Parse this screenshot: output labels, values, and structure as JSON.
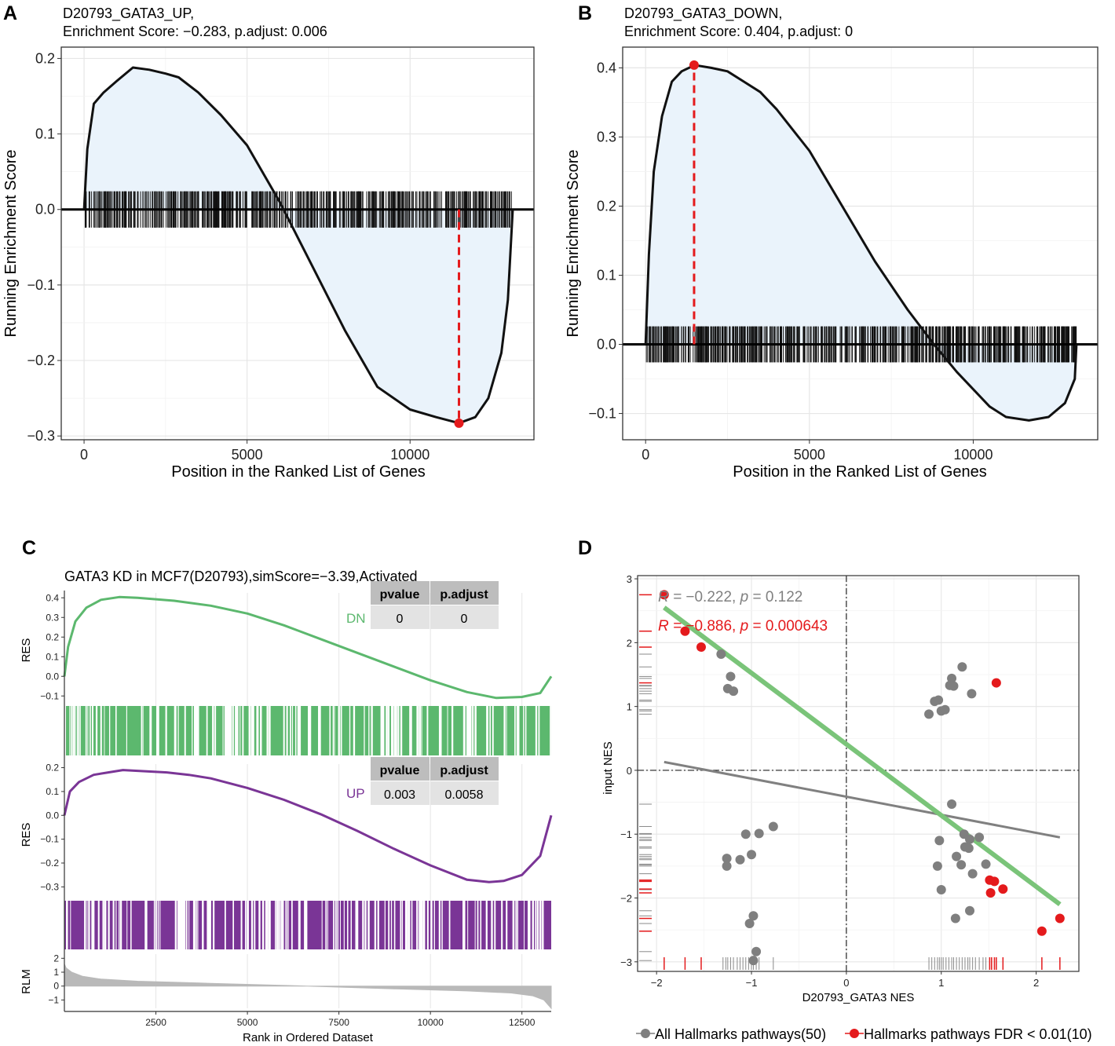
{
  "figure": {
    "panel_letters": [
      "A",
      "B",
      "C",
      "D"
    ]
  },
  "colors": {
    "fill": "#eaf3fb",
    "curve": "#111111",
    "peak": "#e41a1c",
    "dn_green": "#5cb86e",
    "up_purple": "#7a3596",
    "rlm_gray": "#b9b9b9",
    "fit_green": "#7ac479",
    "fit_gray": "#808080",
    "dot_gray": "#7f7f7f",
    "dot_red": "#e41a1c",
    "table_header": "#bdbdbd",
    "table_cell": "#e3e3e3"
  },
  "chart_data": [
    {
      "panel": "A",
      "type": "line",
      "title_line1": "D20793_GATA3_UP,",
      "title_line2": "Enrichment Score: −0.283, p.adjust: 0.006",
      "xlabel": "Position in the Ranked List of Genes",
      "ylabel": "Running Enrichment Score",
      "xlim": [
        -700,
        13800
      ],
      "ylim": [
        -0.305,
        0.215
      ],
      "xticks": [
        0,
        5000,
        10000
      ],
      "xtick_labels": [
        "0",
        "5000",
        "10000"
      ],
      "yticks": [
        -0.3,
        -0.2,
        -0.1,
        0.0,
        0.1,
        0.2
      ],
      "ytick_labels": [
        "−0.3",
        "−0.2",
        "−0.1",
        "0.0",
        "0.1",
        "0.2"
      ],
      "curve_x": [
        0,
        100,
        300,
        600,
        1000,
        1500,
        2000,
        2500,
        2900,
        3500,
        4200,
        5000,
        6000,
        7000,
        8000,
        9000,
        10000,
        10800,
        11500,
        12000,
        12400,
        12800,
        13000,
        13150
      ],
      "curve_y": [
        0.0,
        0.08,
        0.14,
        0.155,
        0.17,
        0.188,
        0.185,
        0.18,
        0.175,
        0.155,
        0.125,
        0.085,
        0.01,
        -0.075,
        -0.16,
        -0.235,
        -0.265,
        -0.275,
        -0.283,
        -0.275,
        -0.25,
        -0.19,
        -0.12,
        0.0
      ],
      "peak_x": 11500,
      "peak_y": -0.283,
      "hit_band": [
        -0.024,
        0.024
      ],
      "hit_range": [
        0,
        13150
      ],
      "hit_count": 560,
      "gap_ranges": [],
      "zero_line": true
    },
    {
      "panel": "B",
      "type": "line",
      "title_line1": "D20793_GATA3_DOWN,",
      "title_line2": "Enrichment Score: 0.404, p.adjust: 0",
      "xlabel": "Position in the Ranked List of Genes",
      "ylabel": "Running Enrichment Score",
      "xlim": [
        -700,
        13800
      ],
      "ylim": [
        -0.138,
        0.43
      ],
      "xticks": [
        0,
        5000,
        10000
      ],
      "xtick_labels": [
        "0",
        "5000",
        "10000"
      ],
      "yticks": [
        -0.1,
        0.0,
        0.1,
        0.2,
        0.3,
        0.4
      ],
      "ytick_labels": [
        "−0.1",
        "0.0",
        "0.1",
        "0.2",
        "0.3",
        "0.4"
      ],
      "curve_x": [
        0,
        100,
        250,
        500,
        800,
        1100,
        1500,
        2000,
        2500,
        3000,
        3500,
        4000,
        5000,
        6000,
        7000,
        8000,
        8800,
        9500,
        10500,
        11000,
        11700,
        12300,
        12800,
        13100,
        13150
      ],
      "curve_y": [
        0.0,
        0.13,
        0.25,
        0.33,
        0.38,
        0.395,
        0.404,
        0.4,
        0.395,
        0.38,
        0.365,
        0.34,
        0.28,
        0.2,
        0.12,
        0.05,
        0.0,
        -0.04,
        -0.09,
        -0.105,
        -0.11,
        -0.105,
        -0.085,
        -0.05,
        0.0
      ],
      "peak_x": 1480,
      "peak_y": 0.404,
      "hit_band": [
        -0.026,
        0.026
      ],
      "hit_range": [
        0,
        13150
      ],
      "hit_count": 600,
      "gap_ranges": [],
      "zero_line": true
    },
    {
      "panel": "C",
      "type": "line",
      "title": "GATA3 KD in MCF7(D20793),simScore=−3.39,Activated",
      "xlabel": "Rank in Ordered Dataset",
      "xlim": [
        0,
        13300
      ],
      "xticks": [
        2500,
        5000,
        7500,
        10000,
        12500
      ],
      "xtick_labels": [
        "2500",
        "5000",
        "7500",
        "10000",
        "12500"
      ],
      "res_label": "RES",
      "rlm_label": "RLM",
      "dn": {
        "name": "DN",
        "ylim": [
          -0.135,
          0.425
        ],
        "yticks": [
          -0.1,
          0.0,
          0.1,
          0.2,
          0.3,
          0.4
        ],
        "ytick_labels": [
          "−0.1",
          "0.0",
          "0.1",
          "0.2",
          "0.3",
          "0.4"
        ],
        "curve_x": [
          0,
          100,
          300,
          600,
          1000,
          1500,
          2000,
          3000,
          4000,
          5000,
          6000,
          7000,
          8000,
          9000,
          10000,
          11000,
          11800,
          12500,
          13000,
          13300
        ],
        "curve_y": [
          0.0,
          0.15,
          0.28,
          0.35,
          0.39,
          0.404,
          0.4,
          0.385,
          0.36,
          0.32,
          0.26,
          0.19,
          0.12,
          0.05,
          -0.02,
          -0.08,
          -0.11,
          -0.105,
          -0.085,
          0.0
        ],
        "table": {
          "headers": [
            "pvalue",
            "p.adjust"
          ],
          "values": [
            "0",
            "0"
          ]
        },
        "hit_count": 520,
        "gap_ranges": [
          [
            4400,
            4550
          ],
          [
            8650,
            8740
          ],
          [
            9000,
            9080
          ]
        ]
      },
      "up": {
        "name": "UP",
        "ylim": [
          -0.335,
          0.215
        ],
        "yticks": [
          -0.3,
          -0.2,
          -0.1,
          0.0,
          0.1,
          0.2
        ],
        "ytick_labels": [
          "−0.3",
          "−0.2",
          "−0.1",
          "0.0",
          "0.1",
          "0.2"
        ],
        "curve_x": [
          0,
          150,
          400,
          800,
          1200,
          1600,
          2200,
          2800,
          3400,
          4000,
          5000,
          6000,
          7000,
          8000,
          9000,
          10000,
          11000,
          11600,
          12000,
          12500,
          13000,
          13300
        ],
        "curve_y": [
          0.0,
          0.1,
          0.14,
          0.17,
          0.18,
          0.19,
          0.185,
          0.18,
          0.17,
          0.155,
          0.115,
          0.065,
          0.005,
          -0.065,
          -0.14,
          -0.21,
          -0.27,
          -0.28,
          -0.275,
          -0.25,
          -0.17,
          0.0
        ],
        "table": {
          "headers": [
            "pvalue",
            "p.adjust"
          ],
          "values": [
            "0.003",
            "0.0058"
          ]
        },
        "hit_count": 480,
        "gap_ranges": [
          [
            3150,
            3300
          ],
          [
            9700,
            9800
          ]
        ]
      },
      "rlm": {
        "ylim": [
          -1.6,
          2.3
        ],
        "yticks": [
          -1,
          0,
          1,
          2
        ],
        "ytick_labels": [
          "−1",
          "0",
          "1",
          "2"
        ],
        "curve_x": [
          0,
          50,
          200,
          500,
          1000,
          2000,
          4000,
          6650,
          9000,
          11000,
          12200,
          12800,
          13100,
          13300
        ],
        "curve_y": [
          1.6,
          1.3,
          1.0,
          0.7,
          0.5,
          0.35,
          0.2,
          0.0,
          -0.2,
          -0.35,
          -0.5,
          -0.7,
          -1.0,
          -1.6
        ]
      }
    },
    {
      "panel": "D",
      "type": "scatter",
      "xlabel": "D20793_GATA3 NES",
      "ylabel": "input NES",
      "xlim": [
        -2.2,
        2.45
      ],
      "ylim": [
        -3.15,
        3.05
      ],
      "xticks": [
        -2,
        -1,
        0,
        1,
        2
      ],
      "xtick_labels": [
        "−2",
        "−1",
        "0",
        "1",
        "2"
      ],
      "yticks": [
        -3,
        -2,
        -1,
        0,
        1,
        2,
        3
      ],
      "ytick_labels": [
        "−3",
        "−2",
        "−1",
        "0",
        "1",
        "2",
        "3"
      ],
      "gray_points": [
        [
          -1.32,
          1.82
        ],
        [
          -1.22,
          1.47
        ],
        [
          -1.25,
          1.28
        ],
        [
          -1.19,
          1.24
        ],
        [
          -1.06,
          -1.0
        ],
        [
          -0.92,
          -0.99
        ],
        [
          -0.77,
          -0.88
        ],
        [
          -1.26,
          -1.38
        ],
        [
          -1.26,
          -1.5
        ],
        [
          -1.12,
          -1.4
        ],
        [
          -1.0,
          -1.32
        ],
        [
          -0.98,
          -2.28
        ],
        [
          -1.02,
          -2.4
        ],
        [
          -0.95,
          -2.84
        ],
        [
          -0.98,
          -2.98
        ],
        [
          1.22,
          1.62
        ],
        [
          1.11,
          1.44
        ],
        [
          1.13,
          1.32
        ],
        [
          1.09,
          1.33
        ],
        [
          0.93,
          1.08
        ],
        [
          0.97,
          1.1
        ],
        [
          1.0,
          0.93
        ],
        [
          1.04,
          0.95
        ],
        [
          0.87,
          0.88
        ],
        [
          1.32,
          1.2
        ],
        [
          1.11,
          -0.53
        ],
        [
          0.98,
          -1.1
        ],
        [
          1.24,
          -1.0
        ],
        [
          1.3,
          -1.08
        ],
        [
          1.4,
          -1.05
        ],
        [
          1.25,
          -1.2
        ],
        [
          1.29,
          -1.22
        ],
        [
          1.16,
          -1.35
        ],
        [
          1.21,
          -1.48
        ],
        [
          1.33,
          -1.62
        ],
        [
          1.47,
          -1.47
        ],
        [
          0.96,
          -1.5
        ],
        [
          1.0,
          -1.87
        ],
        [
          1.15,
          -2.32
        ],
        [
          1.3,
          -2.2
        ]
      ],
      "red_points": [
        [
          -1.92,
          2.75
        ],
        [
          -1.7,
          2.18
        ],
        [
          -1.53,
          1.93
        ],
        [
          1.58,
          1.37
        ],
        [
          1.51,
          -1.72
        ],
        [
          1.56,
          -1.74
        ],
        [
          1.52,
          -1.92
        ],
        [
          1.65,
          -1.86
        ],
        [
          2.06,
          -2.52
        ],
        [
          2.25,
          -2.32
        ]
      ],
      "fit_all": {
        "x": [
          -1.92,
          2.25
        ],
        "y": [
          0.13,
          -1.05
        ]
      },
      "fit_fdr": {
        "x": [
          -1.92,
          2.25
        ],
        "y": [
          2.55,
          -2.1
        ]
      },
      "rug_x_gray": [
        -1.3,
        -1.27,
        -1.25,
        -1.22,
        -1.19,
        -1.15,
        -1.12,
        -1.09,
        -1.06,
        -1.03,
        -1.0,
        -0.98,
        -0.95,
        -0.92,
        -0.77,
        0.87,
        0.9,
        0.93,
        0.96,
        0.98,
        1.0,
        1.02,
        1.05,
        1.08,
        1.11,
        1.13,
        1.16,
        1.19,
        1.22,
        1.25,
        1.28,
        1.3,
        1.33,
        1.36,
        1.4,
        1.44,
        1.47
      ],
      "rug_x_red": [
        -1.92,
        -1.7,
        -1.53,
        1.51,
        1.53,
        1.56,
        1.58,
        1.65,
        2.06,
        2.25
      ],
      "rug_y_gray": [
        1.82,
        1.62,
        1.47,
        1.44,
        1.33,
        1.32,
        1.28,
        1.24,
        1.2,
        1.1,
        1.08,
        0.95,
        0.93,
        0.88,
        -0.53,
        -0.88,
        -0.99,
        -1.0,
        -1.05,
        -1.08,
        -1.1,
        -1.2,
        -1.22,
        -1.32,
        -1.35,
        -1.38,
        -1.4,
        -1.47,
        -1.48,
        -1.5,
        -1.62,
        -1.87,
        -2.2,
        -2.28,
        -2.32,
        -2.4,
        -2.84,
        -2.98
      ],
      "rug_y_red": [
        2.75,
        2.18,
        1.93,
        1.37,
        -1.72,
        -1.74,
        -1.86,
        -1.92,
        -2.32,
        -2.52
      ],
      "stat_all": {
        "prefix": "R = ",
        "r": "−0.222",
        "sep": ", ",
        "p_label": "p",
        "p": " = 0.122"
      },
      "stat_fdr": {
        "prefix": "R = ",
        "r": "−0.886",
        "sep": ", ",
        "p_label": "p",
        "p": " = 0.000643"
      },
      "legend": [
        {
          "label": "All Hallmarks pathways(50)",
          "color": "#7f7f7f"
        },
        {
          "label": "Hallmarks pathways FDR < 0.01(10)",
          "color": "#e41a1c"
        }
      ]
    }
  ]
}
